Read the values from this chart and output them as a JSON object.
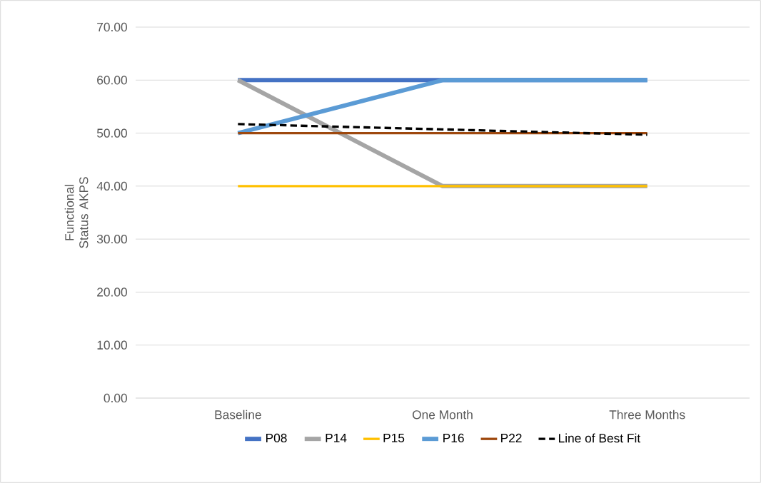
{
  "chart_data": {
    "type": "line",
    "ylabel": "Functional Status AKPS",
    "categories": [
      "Baseline",
      "One Month",
      "Three Months"
    ],
    "series": [
      {
        "name": "P08",
        "color": "#4472c4",
        "values": [
          60,
          60,
          60
        ]
      },
      {
        "name": "P14",
        "color": "#a5a5a5",
        "values": [
          60,
          40,
          40
        ]
      },
      {
        "name": "P15",
        "color": "#ffc000",
        "values": [
          40,
          40,
          40
        ]
      },
      {
        "name": "P16",
        "color": "#5b9bd5",
        "values": [
          50,
          60,
          60
        ]
      },
      {
        "name": "P22",
        "color": "#9e480e",
        "values": [
          50,
          50,
          50
        ]
      },
      {
        "name": "Line of Best Fit",
        "color": "#000000",
        "values": [
          51.7,
          50.7,
          49.7
        ],
        "line_style": "dashed"
      }
    ],
    "ylim": [
      0,
      70
    ],
    "yticks": [
      {
        "value": 0,
        "label": "0.00"
      },
      {
        "value": 10,
        "label": "10.00"
      },
      {
        "value": 20,
        "label": "20.00"
      },
      {
        "value": 30,
        "label": "30.00"
      },
      {
        "value": 40,
        "label": "40.00"
      },
      {
        "value": 50,
        "label": "50.00"
      },
      {
        "value": 60,
        "label": "60.00"
      },
      {
        "value": 70,
        "label": "70.00"
      }
    ],
    "grid": "y",
    "legend": "bottom",
    "marker": "none"
  }
}
